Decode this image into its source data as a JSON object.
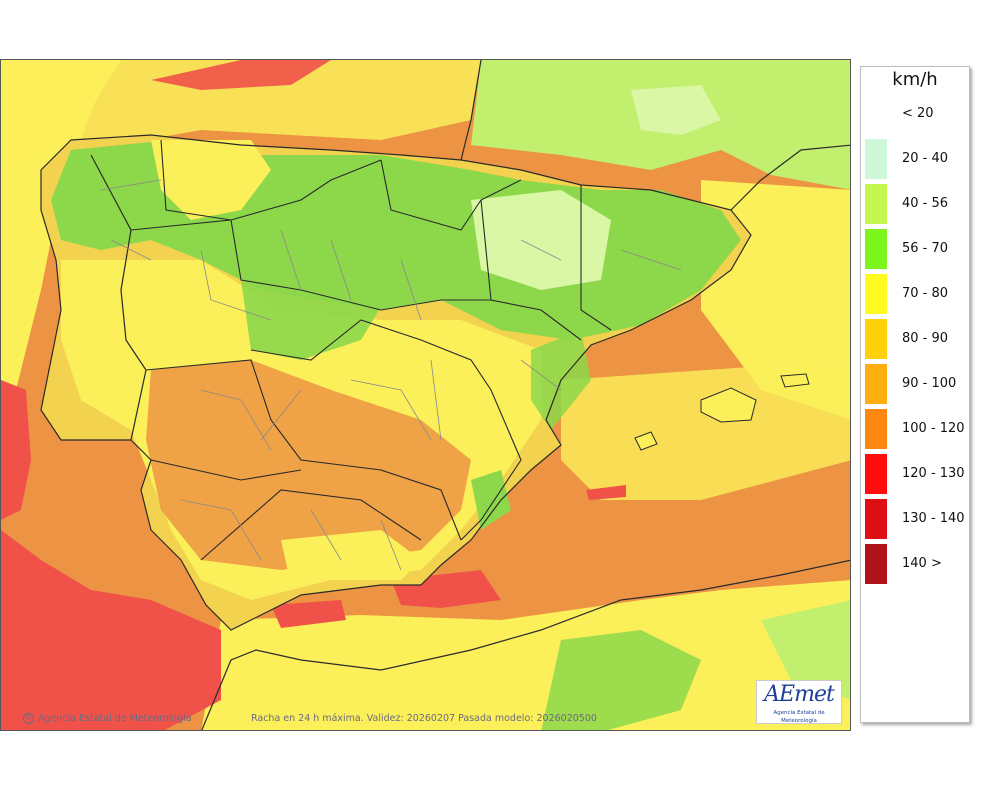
{
  "map": {
    "credit": "Agencia Estatal de Meteorología",
    "validity_text": "Racha en 24 h máxima. Validez: 20260207 Pasada modelo: 2026020500",
    "logo_text": "AEmet",
    "logo_subtitle": "Agencia Estatal de Meteorología",
    "colors": {
      "sea_main": "#f0a04a",
      "land_base": "#f2d24e",
      "green": "#8cd84a",
      "light_green": "#c3ef6e",
      "pale_green": "#d9f7a5",
      "yellow": "#fbef5a",
      "orange": "#ec9443",
      "red": "#f0524a",
      "borders": "#2a2a2a",
      "provinces": "#8a8a8a"
    }
  },
  "legend": {
    "unit": "km/h",
    "classes": [
      {
        "label": "< 20",
        "color": "#ffffff"
      },
      {
        "label": "20 - 40",
        "color": "#cdf7d6"
      },
      {
        "label": "40 - 56",
        "color": "#c4f74d"
      },
      {
        "label": "56 - 70",
        "color": "#7cf51d"
      },
      {
        "label": "70 - 80",
        "color": "#fffa1f"
      },
      {
        "label": "80 - 90",
        "color": "#ffd10a"
      },
      {
        "label": "90 - 100",
        "color": "#ffae0f"
      },
      {
        "label": "100 - 120",
        "color": "#ff8812"
      },
      {
        "label": "120 - 130",
        "color": "#ff0c0c"
      },
      {
        "label": "130 - 140",
        "color": "#db0f14"
      },
      {
        "label": "140 >",
        "color": "#b0141a"
      }
    ]
  }
}
